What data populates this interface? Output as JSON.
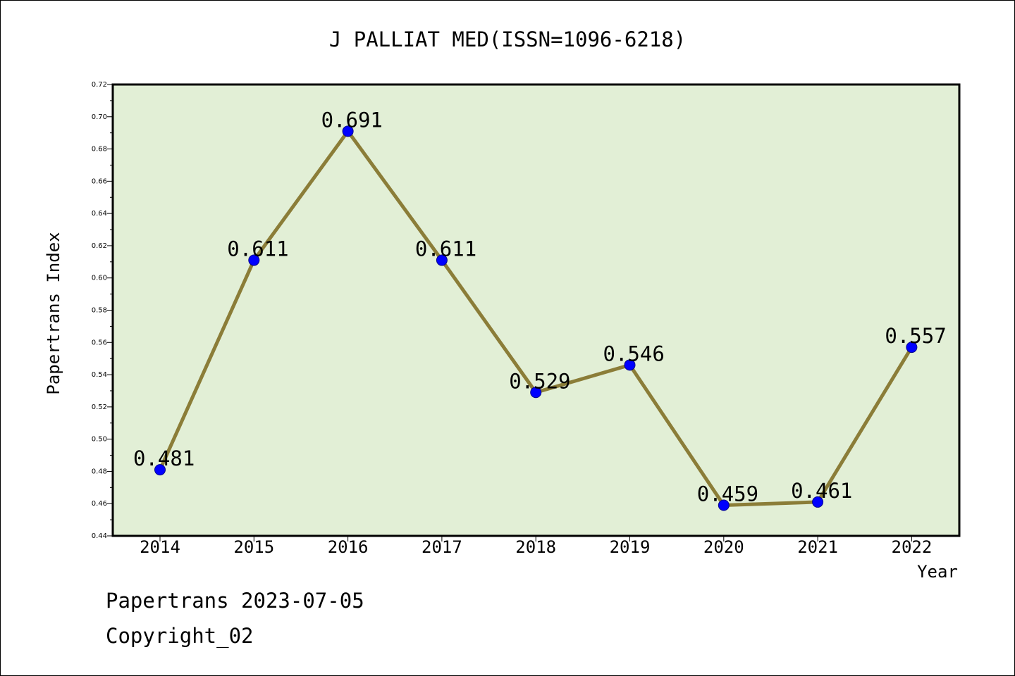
{
  "chart_data": {
    "type": "line",
    "title": "J PALLIAT MED(ISSN=1096-6218)",
    "xlabel": "Year",
    "ylabel": "Papertrans Index",
    "x": [
      "2014",
      "2015",
      "2016",
      "2017",
      "2018",
      "2019",
      "2020",
      "2021",
      "2022"
    ],
    "series": [
      {
        "values": [
          0.481,
          0.611,
          0.691,
          0.611,
          0.529,
          0.546,
          0.459,
          0.461,
          0.557
        ],
        "data_labels": [
          "0.481",
          "0.611",
          "0.691",
          "0.611",
          "0.529",
          "0.546",
          "0.459",
          "0.461",
          "0.557"
        ]
      }
    ],
    "ylim": [
      0.44,
      0.72
    ],
    "yticks": [
      "0.44",
      "0.46",
      "0.48",
      "0.50",
      "0.52",
      "0.54",
      "0.56",
      "0.58",
      "0.60",
      "0.62",
      "0.64",
      "0.66",
      "0.68",
      "0.70",
      "0.72"
    ],
    "grid": false,
    "legend": "none",
    "colors": {
      "plot_background": "#e2efd6",
      "line": "#8b7d38",
      "marker": "#0000ff",
      "marker_edge": "#00008b",
      "axis": "#000000"
    }
  },
  "footer": {
    "line1": "Papertrans 2023-07-05",
    "line2": "Copyright_02"
  }
}
